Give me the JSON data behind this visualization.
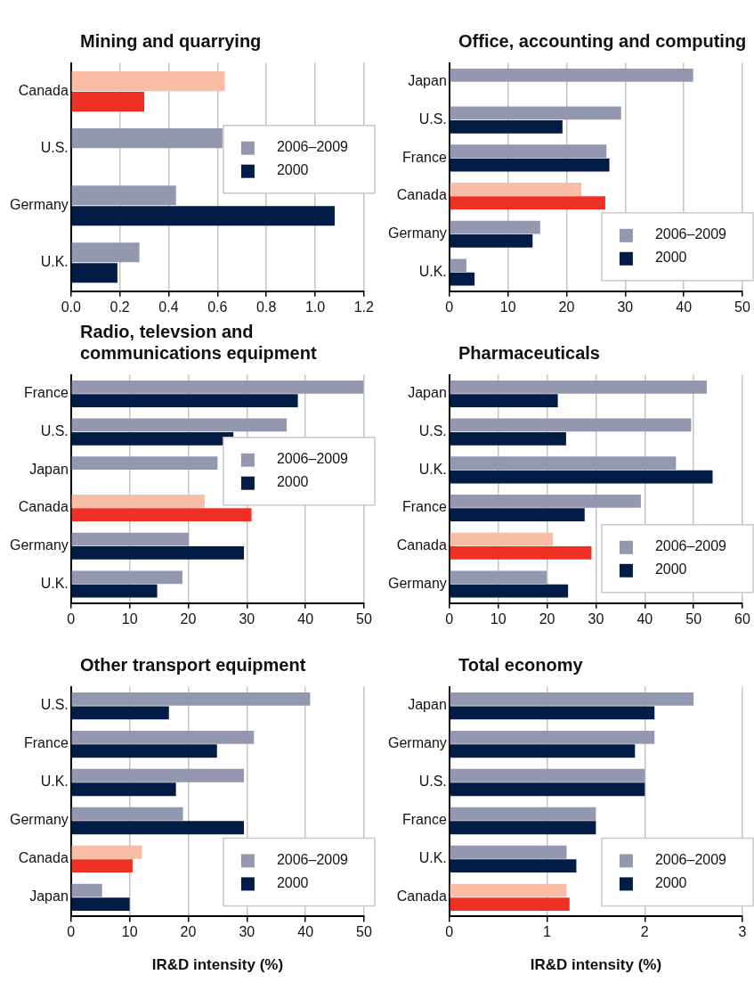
{
  "chart_data": [
    {
      "type": "bar",
      "orientation": "horizontal",
      "title": "Mining and quarrying",
      "categories": [
        "Canada",
        "U.S.",
        "Germany",
        "U.K."
      ],
      "series": [
        {
          "name": "2006–2009",
          "color": "#9397b0",
          "colors": [
            "#f9bca5",
            "#9397b0",
            "#9397b0",
            "#9397b0"
          ],
          "values": [
            0.63,
            0.62,
            0.43,
            0.28
          ]
        },
        {
          "name": "2000",
          "color": "#021d45",
          "colors": [
            "#ee3124",
            "#021d45",
            "#021d45",
            "#021d45"
          ],
          "values": [
            0.3,
            null,
            1.08,
            0.19
          ]
        }
      ],
      "xlim": [
        0,
        1.2
      ],
      "xticks": [
        {
          "value": 0,
          "label": "0.0"
        },
        0.2,
        0.4,
        0.6,
        0.8,
        {
          "value": 1,
          "label": "1.0"
        },
        1.2
      ],
      "grid": "x",
      "legend": "right"
    },
    {
      "type": "bar",
      "orientation": "horizontal",
      "title": "Office, accounting and computing",
      "categories": [
        "Japan",
        "U.S.",
        "France",
        "Canada",
        "Germany",
        "U.K."
      ],
      "series": [
        {
          "name": "2006–2009",
          "color": "#9397b0",
          "colors": [
            "#9397b0",
            "#9397b0",
            "#9397b0",
            "#f9bca5",
            "#9397b0",
            "#9397b0"
          ],
          "values": [
            41.6,
            29.3,
            26.8,
            22.5,
            15.5,
            2.9
          ]
        },
        {
          "name": "2000",
          "color": "#021d45",
          "colors": [
            "#021d45",
            "#021d45",
            "#021d45",
            "#ee3124",
            "#021d45",
            "#021d45"
          ],
          "values": [
            null,
            19.3,
            27.3,
            26.6,
            14.2,
            4.3
          ]
        }
      ],
      "xlim": [
        0,
        50
      ],
      "xticks": [
        0,
        10,
        20,
        30,
        40,
        50
      ],
      "grid": "x",
      "legend": "bottom right"
    },
    {
      "type": "bar",
      "orientation": "horizontal",
      "title": "Radio, televsion and communications equipment",
      "categories": [
        "France",
        "U.S.",
        "Japan",
        "Canada",
        "Germany",
        "U.K."
      ],
      "series": [
        {
          "name": "2006–2009",
          "color": "#9397b0",
          "colors": [
            "#9397b0",
            "#9397b0",
            "#9397b0",
            "#f9bca5",
            "#9397b0",
            "#9397b0"
          ],
          "values": [
            49.9,
            36.8,
            25.0,
            22.8,
            20.1,
            19.0
          ]
        },
        {
          "name": "2000",
          "color": "#021d45",
          "colors": [
            "#021d45",
            "#021d45",
            "#021d45",
            "#ee3124",
            "#021d45",
            "#021d45"
          ],
          "values": [
            38.7,
            27.7,
            null,
            30.8,
            29.5,
            14.7
          ]
        }
      ],
      "xlim": [
        0,
        50
      ],
      "xticks": [
        0,
        10,
        20,
        30,
        40,
        50
      ],
      "grid": "x",
      "legend": "right"
    },
    {
      "type": "bar",
      "orientation": "horizontal",
      "title": "Pharmaceuticals",
      "categories": [
        "Japan",
        "U.S.",
        "U.K.",
        "France",
        "Canada",
        "Germany"
      ],
      "series": [
        {
          "name": "2006–2009",
          "color": "#9397b0",
          "colors": [
            "#9397b0",
            "#9397b0",
            "#9397b0",
            "#9397b0",
            "#f9bca5",
            "#9397b0"
          ],
          "values": [
            52.7,
            49.5,
            46.4,
            39.2,
            21.2,
            19.9
          ]
        },
        {
          "name": "2000",
          "color": "#021d45",
          "colors": [
            "#021d45",
            "#021d45",
            "#021d45",
            "#021d45",
            "#ee3124",
            "#021d45"
          ],
          "values": [
            22.2,
            23.9,
            53.9,
            27.7,
            29.1,
            24.3
          ]
        }
      ],
      "xlim": [
        0,
        60
      ],
      "xticks": [
        0,
        10,
        20,
        30,
        40,
        50,
        60
      ],
      "grid": "x",
      "legend": "bottom right"
    },
    {
      "type": "bar",
      "orientation": "horizontal",
      "title": "Other transport equipment",
      "xlabel": "IR&D intensity (%)",
      "categories": [
        "U.S.",
        "France",
        "U.K.",
        "Germany",
        "Canada",
        "Japan"
      ],
      "series": [
        {
          "name": "2006–2009",
          "color": "#9397b0",
          "colors": [
            "#9397b0",
            "#9397b0",
            "#9397b0",
            "#9397b0",
            "#f9bca5",
            "#9397b0"
          ],
          "values": [
            40.8,
            31.2,
            29.5,
            19.1,
            12.1,
            5.3
          ]
        },
        {
          "name": "2000",
          "color": "#021d45",
          "colors": [
            "#021d45",
            "#021d45",
            "#021d45",
            "#021d45",
            "#ee3124",
            "#021d45"
          ],
          "values": [
            16.7,
            24.9,
            17.9,
            29.5,
            10.5,
            10.0
          ]
        }
      ],
      "xlim": [
        0,
        50
      ],
      "xticks": [
        0,
        10,
        20,
        30,
        40,
        50
      ],
      "grid": "x",
      "legend": "bottom right"
    },
    {
      "type": "bar",
      "orientation": "horizontal",
      "title": "Total economy",
      "xlabel": "IR&D intensity (%)",
      "categories": [
        "Japan",
        "Germany",
        "U.S.",
        "France",
        "U.K.",
        "Canada"
      ],
      "series": [
        {
          "name": "2006–2009",
          "color": "#9397b0",
          "colors": [
            "#9397b0",
            "#9397b0",
            "#9397b0",
            "#9397b0",
            "#9397b0",
            "#f9bca5"
          ],
          "values": [
            2.5,
            2.1,
            2.0,
            1.5,
            1.2,
            1.2
          ]
        },
        {
          "name": "2000",
          "color": "#021d45",
          "colors": [
            "#021d45",
            "#021d45",
            "#021d45",
            "#021d45",
            "#021d45",
            "#ee3124"
          ],
          "values": [
            2.1,
            1.9,
            2.0,
            1.5,
            1.3,
            1.23
          ]
        }
      ],
      "xlim": [
        0,
        3
      ],
      "xticks": [
        0,
        1,
        2,
        3
      ],
      "grid": "x",
      "legend": "bottom right"
    }
  ]
}
